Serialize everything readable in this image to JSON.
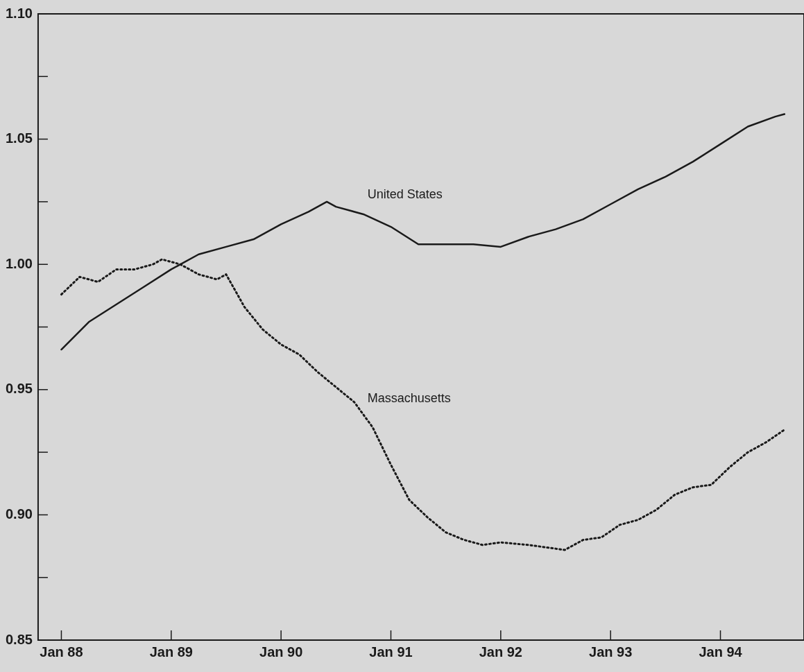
{
  "chart_data": {
    "type": "line",
    "x": [
      "1988-01",
      "1988-04",
      "1988-07",
      "1988-10",
      "1989-01",
      "1989-04",
      "1989-07",
      "1989-10",
      "1990-01",
      "1990-04",
      "1990-06",
      "1990-07",
      "1990-10",
      "1991-01",
      "1991-04",
      "1991-07",
      "1991-10",
      "1992-01",
      "1992-04",
      "1992-07",
      "1992-10",
      "1993-01",
      "1993-04",
      "1993-07",
      "1993-10",
      "1994-01",
      "1994-04",
      "1994-07",
      "1994-08"
    ],
    "series": [
      {
        "name": "United States",
        "color": "#1a1a1a",
        "line_style": "solid",
        "values": [
          0.966,
          0.977,
          0.984,
          0.991,
          0.998,
          1.004,
          1.007,
          1.01,
          1.016,
          1.021,
          1.025,
          1.023,
          1.02,
          1.015,
          1.008,
          1.008,
          1.008,
          1.007,
          1.011,
          1.014,
          1.018,
          1.024,
          1.03,
          1.035,
          1.041,
          1.048,
          1.055,
          1.059,
          1.06
        ]
      },
      {
        "name": "Massachusetts",
        "color": "#1a1a1a",
        "line_style": "dotted",
        "x": [
          "1988-01",
          "1988-03",
          "1988-05",
          "1988-07",
          "1988-09",
          "1988-11",
          "1988-12",
          "1989-02",
          "1989-04",
          "1989-06",
          "1989-07",
          "1989-09",
          "1989-11",
          "1990-01",
          "1990-03",
          "1990-05",
          "1990-07",
          "1990-09",
          "1990-11",
          "1991-01",
          "1991-03",
          "1991-05",
          "1991-07",
          "1991-09",
          "1991-11",
          "1992-01",
          "1992-04",
          "1992-06",
          "1992-08",
          "1992-10",
          "1992-12",
          "1993-02",
          "1993-04",
          "1993-06",
          "1993-08",
          "1993-10",
          "1993-12",
          "1994-02",
          "1994-04",
          "1994-06",
          "1994-08"
        ],
        "values": [
          0.988,
          0.995,
          0.993,
          0.998,
          0.998,
          1.0,
          1.002,
          1.0,
          0.996,
          0.994,
          0.996,
          0.983,
          0.974,
          0.968,
          0.964,
          0.957,
          0.951,
          0.945,
          0.935,
          0.92,
          0.906,
          0.899,
          0.893,
          0.89,
          0.888,
          0.889,
          0.888,
          0.887,
          0.886,
          0.89,
          0.891,
          0.896,
          0.898,
          0.902,
          0.908,
          0.911,
          0.912,
          0.919,
          0.925,
          0.929,
          0.934
        ]
      }
    ],
    "xlim": [
      "1987-10-15",
      "1994-10-05"
    ],
    "xticks": [
      {
        "value": "1988-01",
        "label": "Jan 88"
      },
      {
        "value": "1989-01",
        "label": "Jan 89"
      },
      {
        "value": "1990-01",
        "label": "Jan 90"
      },
      {
        "value": "1991-01",
        "label": "Jan 91"
      },
      {
        "value": "1992-01",
        "label": "Jan 92"
      },
      {
        "value": "1993-01",
        "label": "Jan 93"
      },
      {
        "value": "1994-01",
        "label": "Jan 94"
      }
    ],
    "ylim": [
      0.85,
      1.1
    ],
    "yticks": [
      0.85,
      {
        "value": 0.875,
        "label": null
      },
      {
        "value": 0.9,
        "label": "0.90"
      },
      {
        "value": 0.925,
        "label": null
      },
      0.95,
      {
        "value": 0.975,
        "label": null
      },
      {
        "value": 1.0,
        "label": "1.00"
      },
      {
        "value": 1.025,
        "label": null
      },
      1.05,
      {
        "value": 1.075,
        "label": null
      },
      {
        "value": 1.1,
        "label": "1.10"
      }
    ],
    "legend": false,
    "marker": "none"
  }
}
